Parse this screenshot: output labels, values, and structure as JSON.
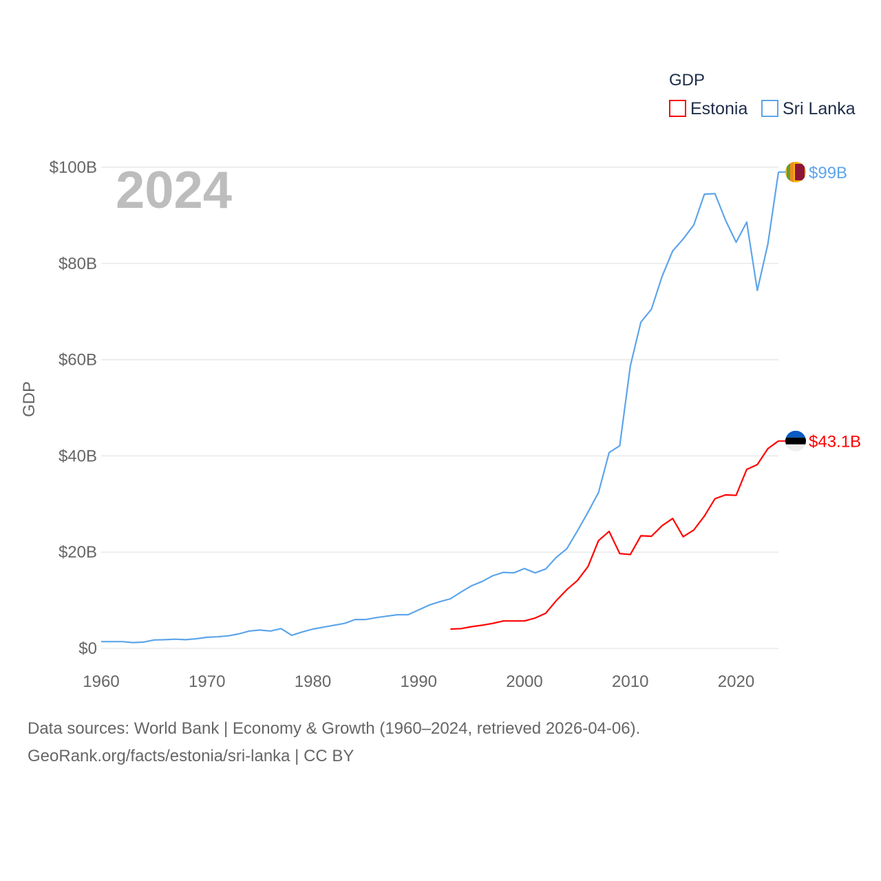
{
  "chart_data": {
    "type": "line",
    "title": "GDP",
    "ylabel": "GDP",
    "xlabel": "",
    "year_label": "2024",
    "xlim": [
      1960,
      2024
    ],
    "ylim": [
      0,
      100
    ],
    "x_ticks": [
      1960,
      1970,
      1980,
      1990,
      2000,
      2010,
      2020
    ],
    "x_tick_labels": [
      "1960",
      "1970",
      "1980",
      "1990",
      "2000",
      "2010",
      "2020"
    ],
    "y_ticks": [
      0,
      20,
      40,
      60,
      80,
      100
    ],
    "y_tick_labels": [
      "$0",
      "$20B",
      "$40B",
      "$60B",
      "$80B",
      "$100B"
    ],
    "grid": true,
    "legend_position": "top-right",
    "legend_title": "GDP",
    "series": [
      {
        "name": "Estonia",
        "color": "#ff0000",
        "end_label": "$43.1B",
        "x_start": 1993,
        "values": [
          4.0,
          4.1,
          4.5,
          4.8,
          5.2,
          5.7,
          5.7,
          5.7,
          6.3,
          7.3,
          9.9,
          12.2,
          14.1,
          17.0,
          22.4,
          24.3,
          19.7,
          19.5,
          23.4,
          23.3,
          25.5,
          27.0,
          23.2,
          24.6,
          27.5,
          31.1,
          31.9,
          31.8,
          37.2,
          38.2,
          41.5,
          43.1
        ]
      },
      {
        "name": "Sri Lanka",
        "color": "#5da5ea",
        "end_label": "$99B",
        "x_start": 1960,
        "values": [
          1.4,
          1.4,
          1.4,
          1.2,
          1.3,
          1.75,
          1.8,
          1.9,
          1.8,
          2.0,
          2.3,
          2.4,
          2.6,
          3.0,
          3.6,
          3.8,
          3.6,
          4.1,
          2.7,
          3.4,
          4.0,
          4.4,
          4.8,
          5.2,
          6.0,
          6.0,
          6.4,
          6.7,
          7.0,
          7.0,
          8.0,
          9.0,
          9.7,
          10.3,
          11.7,
          13.0,
          13.9,
          15.1,
          15.8,
          15.7,
          16.6,
          15.7,
          16.5,
          18.9,
          20.7,
          24.4,
          28.3,
          32.4,
          40.7,
          42.1,
          58.7,
          67.8,
          70.5,
          77.3,
          82.6,
          85.1,
          88.0,
          94.4,
          94.5,
          89.0,
          84.4,
          88.6,
          74.4,
          84.0,
          99.0
        ]
      }
    ]
  },
  "footer": {
    "line1": "Data sources: World Bank | Economy & Growth (1960–2024, retrieved 2026-04-06).",
    "line2": "GeoRank.org/facts/estonia/sri-lanka | CC BY"
  }
}
